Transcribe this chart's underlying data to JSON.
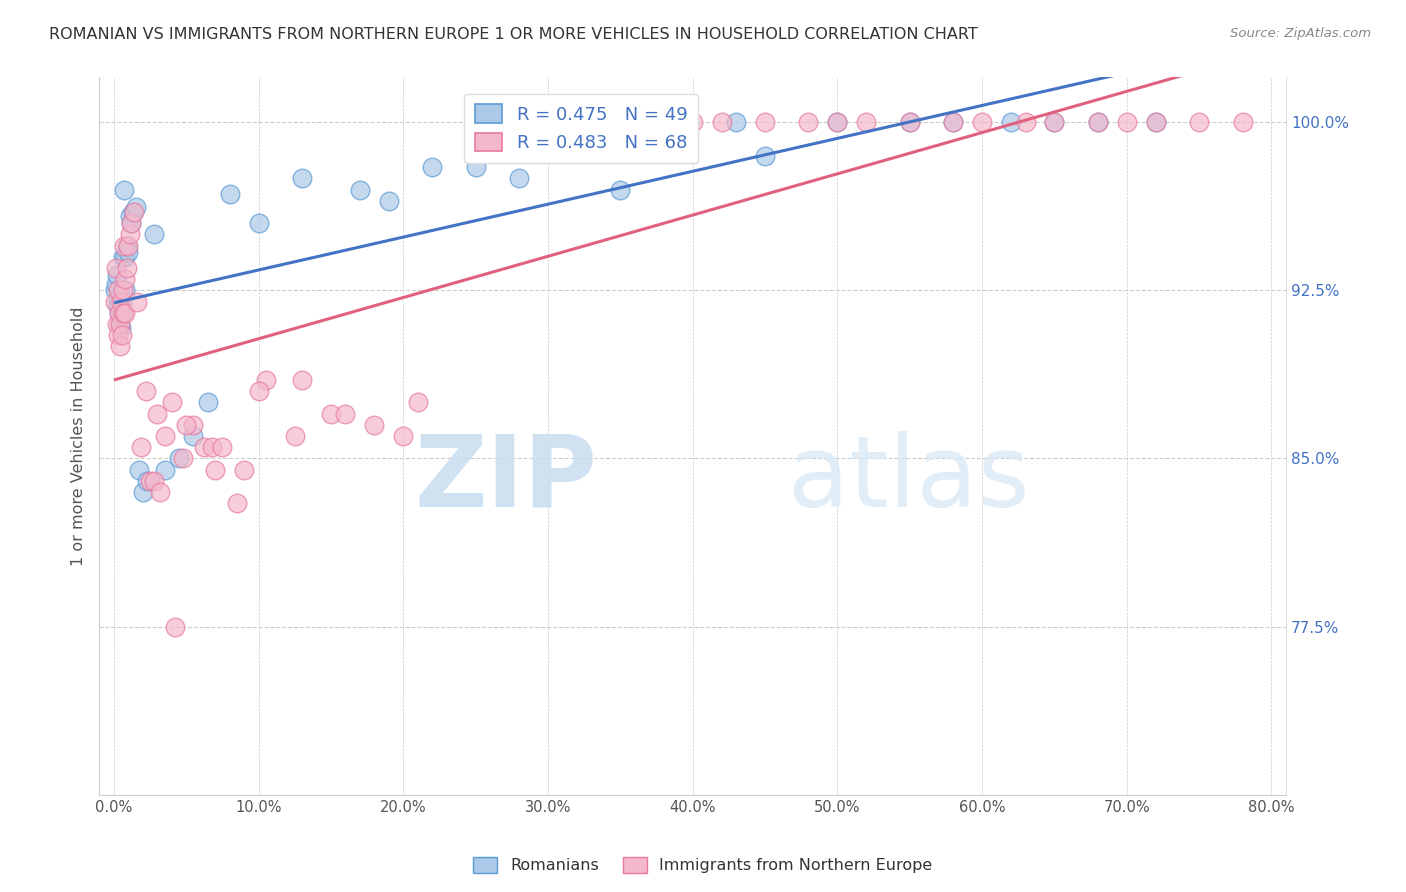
{
  "title": "ROMANIAN VS IMMIGRANTS FROM NORTHERN EUROPE 1 OR MORE VEHICLES IN HOUSEHOLD CORRELATION CHART",
  "source": "Source: ZipAtlas.com",
  "ylabel": "1 or more Vehicles in Household",
  "legend_labels": [
    "Romanians",
    "Immigrants from Northern Europe"
  ],
  "legend_R": [
    0.475,
    0.483
  ],
  "legend_N": [
    49,
    68
  ],
  "blue_color": "#adc9e8",
  "pink_color": "#f4b8cb",
  "blue_edge_color": "#5b9bd5",
  "pink_edge_color": "#e87aa0",
  "blue_line_color": "#4472c4",
  "pink_line_color": "#e06080",
  "watermark_zip": "ZIP",
  "watermark_atlas": "atlas",
  "watermark_color": "#dae8f5",
  "ytick_vals": [
    77.5,
    85.0,
    92.5,
    100.0
  ],
  "xtick_vals": [
    0.0,
    10.0,
    20.0,
    30.0,
    40.0,
    50.0,
    60.0,
    70.0,
    80.0
  ],
  "xlim": [
    -1.0,
    81.0
  ],
  "ylim": [
    70.0,
    102.0
  ],
  "blue_x": [
    0.1,
    0.15,
    0.2,
    0.25,
    0.3,
    0.35,
    0.4,
    0.45,
    0.5,
    0.55,
    0.6,
    0.65,
    0.7,
    0.75,
    0.8,
    0.9,
    1.0,
    1.1,
    1.2,
    1.3,
    1.5,
    1.7,
    2.0,
    2.3,
    2.8,
    3.5,
    4.5,
    5.5,
    6.5,
    8.0,
    10.0,
    13.0,
    17.0,
    22.0,
    28.0,
    35.0,
    43.0,
    50.0,
    58.0,
    65.0,
    72.0,
    45.0,
    55.0,
    62.0,
    68.0,
    30.0,
    38.0,
    25.0,
    19.0
  ],
  "blue_y": [
    92.5,
    92.8,
    93.2,
    91.8,
    92.0,
    91.5,
    92.3,
    91.0,
    90.8,
    92.0,
    91.5,
    94.0,
    97.0,
    92.5,
    94.0,
    94.5,
    94.2,
    95.8,
    95.5,
    96.0,
    96.2,
    84.5,
    83.5,
    84.0,
    95.0,
    84.5,
    85.0,
    86.0,
    87.5,
    96.8,
    95.5,
    97.5,
    97.0,
    98.0,
    97.5,
    97.0,
    100.0,
    100.0,
    100.0,
    100.0,
    100.0,
    98.5,
    100.0,
    100.0,
    100.0,
    100.0,
    100.0,
    98.0,
    96.5
  ],
  "pink_x": [
    0.1,
    0.15,
    0.2,
    0.25,
    0.3,
    0.35,
    0.4,
    0.45,
    0.5,
    0.55,
    0.6,
    0.65,
    0.7,
    0.75,
    0.8,
    0.9,
    1.0,
    1.1,
    1.2,
    1.4,
    1.6,
    1.9,
    2.2,
    2.5,
    3.0,
    3.5,
    4.0,
    4.8,
    5.5,
    6.2,
    7.0,
    8.5,
    10.5,
    12.5,
    15.0,
    18.0,
    21.0,
    4.2,
    6.8,
    9.0,
    2.8,
    3.2,
    5.0,
    7.5,
    10.0,
    13.0,
    16.0,
    20.0,
    25.0,
    30.0,
    35.0,
    38.0,
    40.0,
    42.0,
    45.0,
    48.0,
    50.0,
    52.0,
    55.0,
    58.0,
    60.0,
    63.0,
    65.0,
    68.0,
    70.0,
    72.0,
    75.0,
    78.0
  ],
  "pink_y": [
    92.0,
    93.5,
    91.0,
    92.5,
    90.5,
    91.5,
    90.0,
    91.0,
    92.0,
    90.5,
    91.5,
    92.5,
    94.5,
    91.5,
    93.0,
    93.5,
    94.5,
    95.0,
    95.5,
    96.0,
    92.0,
    85.5,
    88.0,
    84.0,
    87.0,
    86.0,
    87.5,
    85.0,
    86.5,
    85.5,
    84.5,
    83.0,
    88.5,
    86.0,
    87.0,
    86.5,
    87.5,
    77.5,
    85.5,
    84.5,
    84.0,
    83.5,
    86.5,
    85.5,
    88.0,
    88.5,
    87.0,
    86.0,
    100.0,
    100.0,
    100.0,
    100.0,
    100.0,
    100.0,
    100.0,
    100.0,
    100.0,
    100.0,
    100.0,
    100.0,
    100.0,
    100.0,
    100.0,
    100.0,
    100.0,
    100.0,
    100.0,
    100.0
  ]
}
